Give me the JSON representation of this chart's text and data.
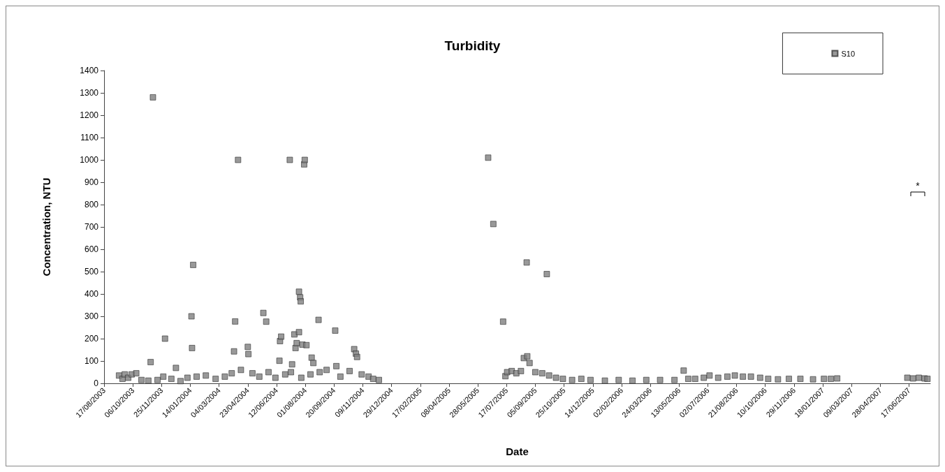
{
  "chart_data": {
    "type": "scatter",
    "title": "Turbidity",
    "xlabel": "Date",
    "ylabel": "Concentration, NTU",
    "legend": "top right",
    "marker": "square",
    "grid": false,
    "annotations": [
      "*"
    ],
    "xlim": [
      "2003-08-17",
      "2007-07-24"
    ],
    "ylim": [
      0,
      1400
    ],
    "yticks": [
      0,
      100,
      200,
      300,
      400,
      500,
      600,
      700,
      800,
      900,
      1000,
      1100,
      1200,
      1300,
      1400
    ],
    "xticks": [
      {
        "value": "2003-08-17",
        "label": "17/08/2003"
      },
      {
        "value": "2003-10-06",
        "label": "06/10/2003"
      },
      {
        "value": "2003-11-25",
        "label": "25/11/2003"
      },
      {
        "value": "2004-01-14",
        "label": "14/01/2004"
      },
      {
        "value": "2004-03-04",
        "label": "04/03/2004"
      },
      {
        "value": "2004-04-23",
        "label": "23/04/2004"
      },
      {
        "value": "2004-06-12",
        "label": "12/06/2004"
      },
      {
        "value": "2004-08-01",
        "label": "01/08/2004"
      },
      {
        "value": "2004-09-20",
        "label": "20/09/2004"
      },
      {
        "value": "2004-11-09",
        "label": "09/11/2004"
      },
      {
        "value": "2004-12-29",
        "label": "29/12/2004"
      },
      {
        "value": "2005-02-17",
        "label": "17/02/2005"
      },
      {
        "value": "2005-04-08",
        "label": "08/04/2005"
      },
      {
        "value": "2005-05-28",
        "label": "28/05/2005"
      },
      {
        "value": "2005-07-17",
        "label": "17/07/2005"
      },
      {
        "value": "2005-09-05",
        "label": "05/09/2005"
      },
      {
        "value": "2005-10-25",
        "label": "25/10/2005"
      },
      {
        "value": "2005-12-14",
        "label": "14/12/2005"
      },
      {
        "value": "2006-02-02",
        "label": "02/02/2006"
      },
      {
        "value": "2006-03-24",
        "label": "24/03/2006"
      },
      {
        "value": "2006-05-13",
        "label": "13/05/2006"
      },
      {
        "value": "2006-07-02",
        "label": "02/07/2006"
      },
      {
        "value": "2006-08-21",
        "label": "21/08/2006"
      },
      {
        "value": "2006-10-10",
        "label": "10/10/2006"
      },
      {
        "value": "2006-11-29",
        "label": "29/11/2006"
      },
      {
        "value": "2007-01-18",
        "label": "18/01/2007"
      },
      {
        "value": "2007-03-09",
        "label": "09/03/2007"
      },
      {
        "value": "2007-04-28",
        "label": "28/04/2007"
      },
      {
        "value": "2007-06-17",
        "label": "17/06/2007"
      }
    ],
    "series": [
      {
        "name": "S10",
        "color": "#808080",
        "x": [
          "2003-09-12",
          "2003-09-18",
          "2003-09-22",
          "2003-09-28",
          "2003-10-04",
          "2003-10-12",
          "2003-10-21",
          "2003-11-02",
          "2003-11-06",
          "2003-11-10",
          "2003-11-18",
          "2003-11-28",
          "2003-12-01",
          "2003-12-12",
          "2003-12-20",
          "2003-12-28",
          "2004-01-09",
          "2004-01-16",
          "2004-01-17",
          "2004-01-19",
          "2004-01-25",
          "2004-02-10",
          "2004-02-27",
          "2004-03-14",
          "2004-03-26",
          "2004-03-30",
          "2004-04-01",
          "2004-04-06",
          "2004-04-11",
          "2004-04-23",
          "2004-04-24",
          "2004-05-01",
          "2004-05-13",
          "2004-05-20",
          "2004-05-25",
          "2004-05-29",
          "2004-06-10",
          "2004-06-17",
          "2004-06-18",
          "2004-06-20",
          "2004-06-27",
          "2004-07-05",
          "2004-07-07",
          "2004-07-09",
          "2004-07-13",
          "2004-07-15",
          "2004-07-17",
          "2004-07-21",
          "2004-07-21",
          "2004-07-23",
          "2004-07-24",
          "2004-07-25",
          "2004-07-27",
          "2004-07-30",
          "2004-07-31",
          "2004-08-03",
          "2004-08-10",
          "2004-08-12",
          "2004-08-15",
          "2004-08-24",
          "2004-08-26",
          "2004-09-07",
          "2004-09-22",
          "2004-09-24",
          "2004-10-01",
          "2004-10-17",
          "2004-10-25",
          "2004-10-28",
          "2004-10-30",
          "2004-11-07",
          "2004-11-19",
          "2004-11-27",
          "2004-12-07",
          "2005-06-15",
          "2005-06-24",
          "2005-07-11",
          "2005-07-15",
          "2005-07-18",
          "2005-07-26",
          "2005-08-03",
          "2005-08-11",
          "2005-08-16",
          "2005-08-21",
          "2005-08-22",
          "2005-08-26",
          "2005-09-05",
          "2005-09-17",
          "2005-09-25",
          "2005-09-29",
          "2005-10-11",
          "2005-10-23",
          "2005-11-08",
          "2005-11-24",
          "2005-12-10",
          "2006-01-04",
          "2006-01-28",
          "2006-02-21",
          "2006-03-17",
          "2006-04-10",
          "2006-05-05",
          "2006-05-21",
          "2006-05-29",
          "2006-06-10",
          "2006-06-25",
          "2006-07-05",
          "2006-07-20",
          "2006-08-05",
          "2006-08-18",
          "2006-09-01",
          "2006-09-15",
          "2006-10-01",
          "2006-10-15",
          "2006-11-01",
          "2006-11-20",
          "2006-12-10",
          "2007-01-01",
          "2007-01-20",
          "2007-02-01",
          "2007-02-12",
          "2007-06-14",
          "2007-06-24",
          "2007-07-04",
          "2007-07-14",
          "2007-07-19"
        ],
        "values": [
          35,
          20,
          40,
          25,
          40,
          45,
          15,
          12,
          95,
          1280,
          15,
          30,
          200,
          20,
          69,
          10,
          25,
          300,
          158,
          530,
          30,
          35,
          20,
          30,
          45,
          143,
          277,
          1000,
          60,
          163,
          131,
          45,
          30,
          315,
          276,
          50,
          25,
          101,
          189,
          209,
          40,
          1000,
          50,
          85,
          219,
          158,
          180,
          410,
          229,
          385,
          367,
          25,
          173,
          980,
          1000,
          171,
          40,
          115,
          91,
          284,
          50,
          60,
          236,
          77,
          30,
          55,
          153,
          133,
          118,
          40,
          30,
          20,
          15,
          1010,
          713,
          276,
          32,
          50,
          55,
          45,
          55,
          113,
          541,
          121,
          91,
          50,
          45,
          489,
          35,
          25,
          20,
          15,
          20,
          15,
          12,
          15,
          12,
          15,
          15,
          15,
          57,
          20,
          20,
          25,
          35,
          25,
          30,
          35,
          30,
          30,
          25,
          20,
          18,
          20,
          20,
          18,
          20,
          20,
          22,
          25,
          22,
          25,
          22,
          20
        ]
      }
    ]
  }
}
